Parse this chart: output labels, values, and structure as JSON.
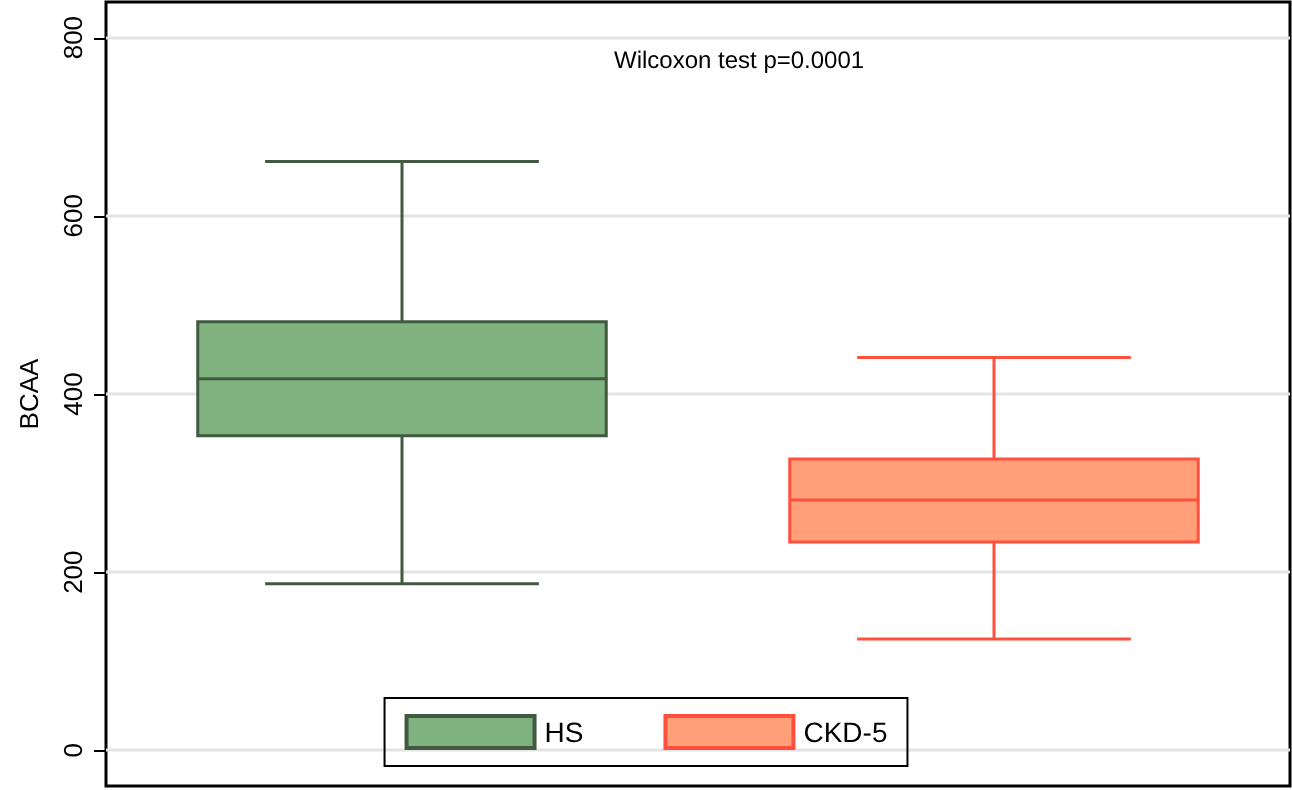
{
  "chart_data": {
    "type": "box",
    "ylabel": "BCAA",
    "annotations": [
      "Wilcoxon test p=0.0001"
    ],
    "categories": [
      null,
      null
    ],
    "series": [
      {
        "name": "HS",
        "color": "#80b27f",
        "boxes": [
          {
            "low": 187,
            "q1": 353,
            "median": 417,
            "q3": 481,
            "high": 661
          },
          null
        ]
      },
      {
        "name": "CKD-5",
        "color": "#ffa07a",
        "boxes": [
          null,
          {
            "low": 125,
            "q1": 234,
            "median": 281,
            "q3": 327,
            "high": 441
          }
        ]
      }
    ],
    "ylim": [
      -40,
      840
    ],
    "yticks": [
      0,
      200,
      400,
      600,
      800
    ],
    "grid": "y",
    "legend": "bottom"
  }
}
